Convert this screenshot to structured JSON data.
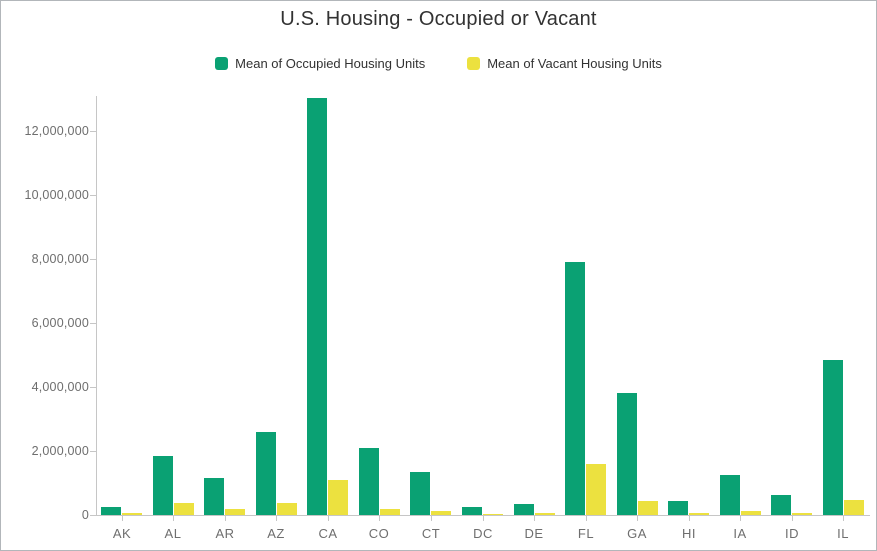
{
  "title": "U.S. Housing - Occupied or Vacant",
  "chart_data": {
    "type": "bar",
    "title": "U.S. Housing - Occupied or Vacant",
    "categories": [
      "AK",
      "AL",
      "AR",
      "AZ",
      "CA",
      "CO",
      "CT",
      "DC",
      "DE",
      "FL",
      "GA",
      "HI",
      "IA",
      "ID",
      "IL"
    ],
    "series": [
      {
        "name": "Mean of Occupied Housing Units",
        "color": "#0aa173",
        "values": [
          240000,
          1850000,
          1150000,
          2600000,
          13050000,
          2100000,
          1360000,
          260000,
          340000,
          7900000,
          3800000,
          440000,
          1250000,
          610000,
          4850000
        ]
      },
      {
        "name": "Mean of Vacant Housing Units",
        "color": "#ece13f",
        "values": [
          55000,
          360000,
          180000,
          370000,
          1080000,
          190000,
          110000,
          30000,
          60000,
          1580000,
          450000,
          50000,
          120000,
          60000,
          460000
        ]
      }
    ],
    "xlabel": "",
    "ylabel": "",
    "ylim": [
      0,
      13100000
    ],
    "yticks": [
      0,
      2000000,
      4000000,
      6000000,
      8000000,
      10000000,
      12000000
    ],
    "ytick_labels": [
      "0",
      "2,000,000",
      "4,000,000",
      "6,000,000",
      "8,000,000",
      "10,000,000",
      "12,000,000"
    ],
    "grid": false,
    "legend_position": "top",
    "axis_color": "#c6c6c6",
    "tick_label_color": "#6e6e6e"
  }
}
